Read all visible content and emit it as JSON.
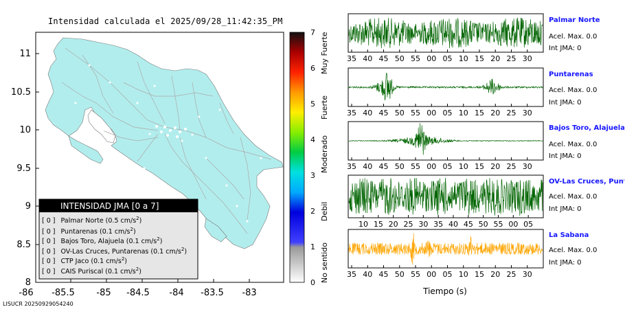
{
  "map": {
    "title": "Intensidad calculada el 2025/09/28_11:42:35_PM",
    "x_ticks": [
      "-86",
      "-85.5",
      "-85",
      "-84.5",
      "-84",
      "-83.5",
      "-83"
    ],
    "y_ticks": [
      "11",
      "10.5",
      "10",
      "9.5",
      "9",
      "8.5",
      "8"
    ],
    "colors": {
      "land": "#b2eded",
      "roads": "#aaaaaa",
      "cities": "#ffffff"
    }
  },
  "legend": {
    "header": "INTENSIDAD JMA [0 a 7]",
    "items": [
      {
        "level": "[ 0 ]",
        "name": "Palmar Norte (0.5 cm/s",
        "sup": "2",
        "close": ")"
      },
      {
        "level": "[ 0 ]",
        "name": "Puntarenas (0.1 cm/s",
        "sup": "2",
        "close": ")"
      },
      {
        "level": "[ 0 ]",
        "name": "Bajos Toro, Alajuela (0.1 cm/s",
        "sup": "2",
        "close": ")"
      },
      {
        "level": "[ 0 ]",
        "name": "OV-Las Cruces, Puntarenas (0.1 cm/s",
        "sup": "2",
        "close": ")"
      },
      {
        "level": "[ 0 ]",
        "name": "CTP Jaco (0.1 cm/s",
        "sup": "2",
        "close": ")"
      },
      {
        "level": "[ 0 ]",
        "name": "CAIS Puriscal (0.1 cm/s",
        "sup": "2",
        "close": ")"
      }
    ]
  },
  "colorbar": {
    "ticks": [
      "0",
      "1",
      "2",
      "3",
      "4",
      "5",
      "6",
      "7"
    ],
    "labels": [
      "No sentido",
      "Debil",
      "Moderado",
      "Fuerte",
      "Muy Fuerte"
    ]
  },
  "chart_data": {
    "type": "line",
    "xlabel": "Tiempo (s)",
    "series": [
      {
        "name": "Palmar Norte",
        "accel": "Acel. Max. 0.0",
        "int": "Int JMA: 0",
        "color": "#006400",
        "ticks": [
          "35",
          "40",
          "45",
          "50",
          "55",
          "00",
          "05",
          "10",
          "15",
          "20",
          "25",
          "30"
        ],
        "envelope": "continuous"
      },
      {
        "name": "Puntarenas",
        "accel": "Acel. Max. 0.0",
        "int": "Int JMA: 0",
        "color": "#006400",
        "ticks": [
          "35",
          "40",
          "45",
          "50",
          "55",
          "00",
          "05",
          "10",
          "15",
          "20",
          "25",
          "30"
        ],
        "envelope": "bursts"
      },
      {
        "name": "Bajos Toro, Alajuela",
        "accel": "Acel. Max. 0.0",
        "int": "Int JMA: 0",
        "color": "#006400",
        "ticks": [
          "35",
          "40",
          "45",
          "50",
          "55",
          "00",
          "05",
          "10",
          "15",
          "20",
          "25",
          "30"
        ],
        "envelope": "event"
      },
      {
        "name": "OV-Las Cruces, Puntar",
        "accel": "Acel. Max. 0.0",
        "int": "Int JMA: 0",
        "color": "#006400",
        "ticks": [
          "10",
          "15",
          "20",
          "25",
          "30",
          "35",
          "40",
          "45",
          "50",
          "55",
          "00",
          "05"
        ],
        "envelope": "noise"
      },
      {
        "name": "La Sabana",
        "accel": "Acel. Max. 0.0",
        "int": "Int JMA: 0",
        "color": "#ffa500",
        "ticks": [
          "35",
          "40",
          "45",
          "50",
          "55",
          "00",
          "05",
          "10",
          "15",
          "20",
          "25",
          "30"
        ],
        "envelope": "spikes"
      }
    ]
  },
  "footer": "LISUCR 20250929054240"
}
